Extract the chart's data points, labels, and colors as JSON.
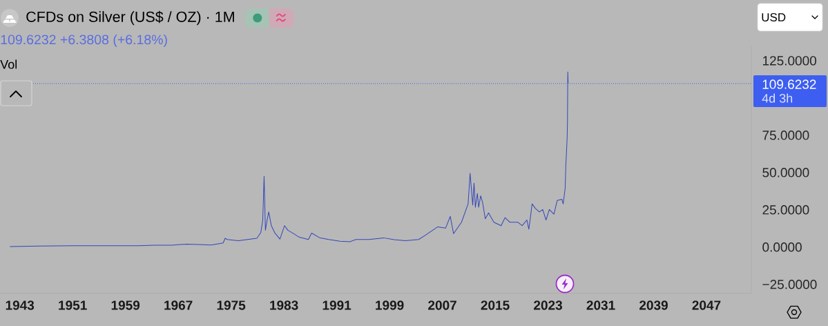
{
  "chart_data": {
    "type": "line",
    "title": "CFDs on Silver (US$ / OZ) · 1M",
    "subtitle": "109.6232  +6.3808 (+6.18%)",
    "annotations": [
      "Vol",
      "4d 3h",
      "USD"
    ],
    "x": [
      1941.5,
      1946,
      1951,
      1956,
      1961,
      1963.5,
      1966,
      1968.3,
      1970,
      1972,
      1973.8,
      1974.1,
      1974.4,
      1976.1,
      1978.9,
      1979.5,
      1979.8,
      1980.0,
      1980.2,
      1980.4,
      1980.7,
      1981.1,
      1981.6,
      1982.4,
      1983.1,
      1983.6,
      1984.5,
      1985.3,
      1986.7,
      1987.2,
      1988.4,
      1989.8,
      1991.5,
      1993.0,
      1993.9,
      1995.9,
      1998.1,
      1999.7,
      2001.4,
      2003.4,
      2004.3,
      2006.3,
      2007.5,
      2008.2,
      2008.7,
      2009.9,
      2010.9,
      2011.2,
      2011.6,
      2011.8,
      2012.0,
      2012.3,
      2012.5,
      2012.8,
      2013.1,
      2013.5,
      2014.0,
      2014.8,
      2015.9,
      2016.5,
      2017.2,
      2018.4,
      2019.1,
      2019.8,
      2020.1,
      2020.6,
      2021.1,
      2021.7,
      2022.2,
      2022.7,
      2023.2,
      2023.9,
      2024.4,
      2025.1,
      2025.3,
      2025.6,
      2025.7,
      2025.9,
      2025.95,
      2026.0,
      2026.05
    ],
    "series": [
      {
        "color": "#3446b8",
        "values": [
          0.4,
          0.7,
          0.9,
          0.9,
          0.9,
          1.3,
          1.3,
          2,
          1.7,
          1.4,
          2.8,
          5.9,
          5.1,
          4.3,
          5.9,
          9.7,
          18,
          47.5,
          11.3,
          16.7,
          23.6,
          14.4,
          9.7,
          5.4,
          14.4,
          11.3,
          9,
          6.7,
          5.1,
          9.4,
          6.3,
          5.1,
          4,
          3.6,
          5.1,
          5.1,
          6.2,
          5,
          4.3,
          5.1,
          7.6,
          13.6,
          12.8,
          20.6,
          9,
          16.7,
          29,
          49.5,
          28.2,
          42.9,
          26.7,
          36,
          26.7,
          34.4,
          29.8,
          19,
          22.9,
          16.7,
          14.4,
          19.8,
          16.7,
          16.7,
          14.4,
          18.2,
          12,
          29,
          25.9,
          23.6,
          25.2,
          18.2,
          25.2,
          22.1,
          31.3,
          32.1,
          29,
          39.5,
          54.5,
          73,
          83.8,
          117.5,
          109.6232
        ]
      }
    ],
    "xlim": [
      1940,
      2053.8
    ],
    "xticks": [
      1943,
      1951,
      1959,
      1967,
      1975,
      1983,
      1991,
      1999,
      2007,
      2015,
      2023,
      2031,
      2039,
      2047
    ],
    "ylim": [
      -31,
      135
    ],
    "yticks": [
      {
        "value": -25,
        "label": "−25.0000"
      },
      {
        "value": 0,
        "label": "0.0000"
      },
      {
        "value": 25,
        "label": "25.0000"
      },
      {
        "value": 50,
        "label": "50.0000"
      },
      {
        "value": 75,
        "label": "75.0000"
      },
      {
        "value": 125,
        "label": "125.0000"
      }
    ],
    "ref_lines": [
      {
        "axis": "y",
        "value": 109.6232,
        "label": "109.6232",
        "color": "#3d5ef0",
        "line_style": "dotted"
      }
    ]
  }
}
